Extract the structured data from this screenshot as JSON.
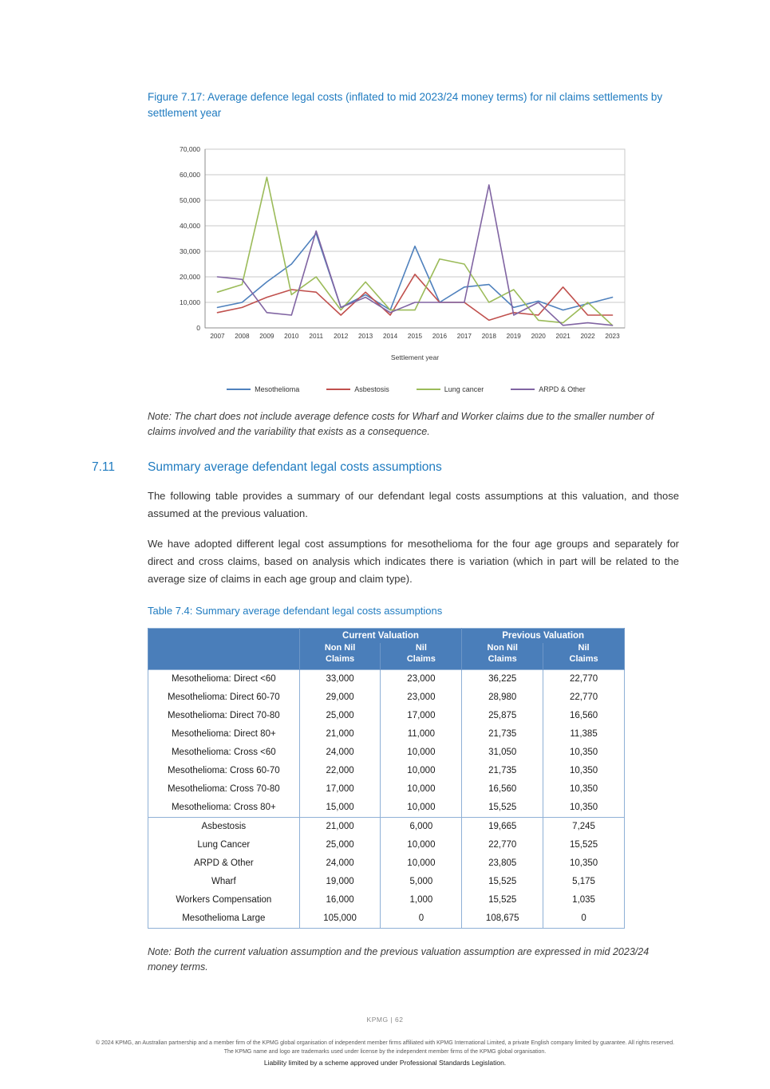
{
  "colors": {
    "heading_blue": "#1F7BC0",
    "table_header_bg": "#4A7EBA",
    "table_border": "#8FB0D6",
    "gridline": "#C9C9C9",
    "axis": "#8C8C8C"
  },
  "figure": {
    "title": "Figure 7.17: Average defence legal costs (inflated to mid 2023/24 money terms) for nil claims settlements by settlement year",
    "note": "Note: The chart does not include average defence costs for Wharf and Worker claims due to the smaller number of claims involved and the variability that exists as a consequence."
  },
  "chart_data": {
    "type": "line",
    "x": [
      2007,
      2008,
      2009,
      2010,
      2011,
      2012,
      2013,
      2014,
      2015,
      2016,
      2017,
      2018,
      2019,
      2020,
      2021,
      2022,
      2023
    ],
    "series": [
      {
        "name": "Mesothelioma",
        "color": "#4F81BD",
        "values": [
          8000,
          10000,
          18000,
          25000,
          37000,
          8000,
          13000,
          7000,
          32000,
          10000,
          16000,
          17000,
          8000,
          10500,
          7000,
          9500,
          12000
        ]
      },
      {
        "name": "Asbestosis",
        "color": "#C0504D",
        "values": [
          6000,
          8000,
          12000,
          15000,
          14000,
          5000,
          14000,
          5000,
          21000,
          10000,
          10000,
          3000,
          6000,
          5000,
          16000,
          5000,
          5000
        ]
      },
      {
        "name": "Lung cancer",
        "color": "#9BBB59",
        "values": [
          14000,
          17000,
          59000,
          13000,
          20000,
          7000,
          18000,
          7000,
          7000,
          27000,
          25000,
          10000,
          15000,
          3000,
          2000,
          10000,
          1000
        ]
      },
      {
        "name": "ARPD & Other",
        "color": "#8064A2",
        "values": [
          20000,
          19000,
          6000,
          5000,
          38000,
          8000,
          12000,
          6000,
          10000,
          10000,
          10000,
          56000,
          5000,
          10000,
          1000,
          2000,
          1000
        ]
      }
    ],
    "xlabel": "Settlement year",
    "ylabel": "",
    "ylim": [
      0,
      70000
    ],
    "ytick_step": 10000,
    "grid": true,
    "legend_position": "bottom"
  },
  "section": {
    "number": "7.11",
    "title": "Summary average defendant legal costs assumptions",
    "paragraphs": [
      "The following table provides a summary of our defendant legal costs assumptions at this valuation, and those assumed at the previous valuation.",
      "We have adopted different legal cost assumptions for mesothelioma for the four age groups and separately for direct and cross claims, based on analysis which indicates there is variation (which in part will be related to the average size of claims in each age group and claim type)."
    ]
  },
  "table": {
    "title": "Table 7.4: Summary average defendant legal costs assumptions",
    "col_groups": [
      "Current Valuation",
      "Previous Valuation"
    ],
    "sub_headers": [
      "Non Nil\nClaims",
      "Nil\nClaims",
      "Non Nil\nClaims",
      "Nil\nClaims"
    ],
    "rows": [
      {
        "label": "Mesothelioma: Direct <60",
        "values": [
          "33,000",
          "23,000",
          "36,225",
          "22,770"
        ]
      },
      {
        "label": "Mesothelioma: Direct 60-70",
        "values": [
          "29,000",
          "23,000",
          "28,980",
          "22,770"
        ]
      },
      {
        "label": "Mesothelioma: Direct 70-80",
        "values": [
          "25,000",
          "17,000",
          "25,875",
          "16,560"
        ]
      },
      {
        "label": "Mesothelioma: Direct 80+",
        "values": [
          "21,000",
          "11,000",
          "21,735",
          "11,385"
        ]
      },
      {
        "label": "Mesothelioma: Cross <60",
        "values": [
          "24,000",
          "10,000",
          "31,050",
          "10,350"
        ]
      },
      {
        "label": "Mesothelioma: Cross 60-70",
        "values": [
          "22,000",
          "10,000",
          "21,735",
          "10,350"
        ]
      },
      {
        "label": "Mesothelioma: Cross 70-80",
        "values": [
          "17,000",
          "10,000",
          "16,560",
          "10,350"
        ]
      },
      {
        "label": "Mesothelioma: Cross 80+",
        "values": [
          "15,000",
          "10,000",
          "15,525",
          "10,350"
        ]
      },
      {
        "label": "Asbestosis",
        "group_start": true,
        "values": [
          "21,000",
          "6,000",
          "19,665",
          "7,245"
        ]
      },
      {
        "label": "Lung Cancer",
        "values": [
          "25,000",
          "10,000",
          "22,770",
          "15,525"
        ]
      },
      {
        "label": "ARPD & Other",
        "values": [
          "24,000",
          "10,000",
          "23,805",
          "10,350"
        ]
      },
      {
        "label": "Wharf",
        "values": [
          "19,000",
          "5,000",
          "15,525",
          "5,175"
        ]
      },
      {
        "label": "Workers Compensation",
        "values": [
          "16,000",
          "1,000",
          "15,525",
          "1,035"
        ]
      },
      {
        "label": "Mesothelioma Large",
        "values": [
          "105,000",
          "0",
          "108,675",
          "0"
        ]
      }
    ],
    "note": "Note: Both the current valuation assumption and the previous valuation assumption are expressed in mid 2023/24 money terms."
  },
  "footer": {
    "page_label": "KPMG  |  62",
    "copyright": "© 2024 KPMG, an Australian partnership and a member firm of the KPMG global organisation of independent member firms affiliated with KPMG International Limited, a private English company limited by guarantee. All rights reserved. The KPMG name and logo are trademarks used under license by the independent member firms of the KPMG global organisation.",
    "liability": "Liability limited by a scheme approved under Professional Standards Legislation."
  }
}
